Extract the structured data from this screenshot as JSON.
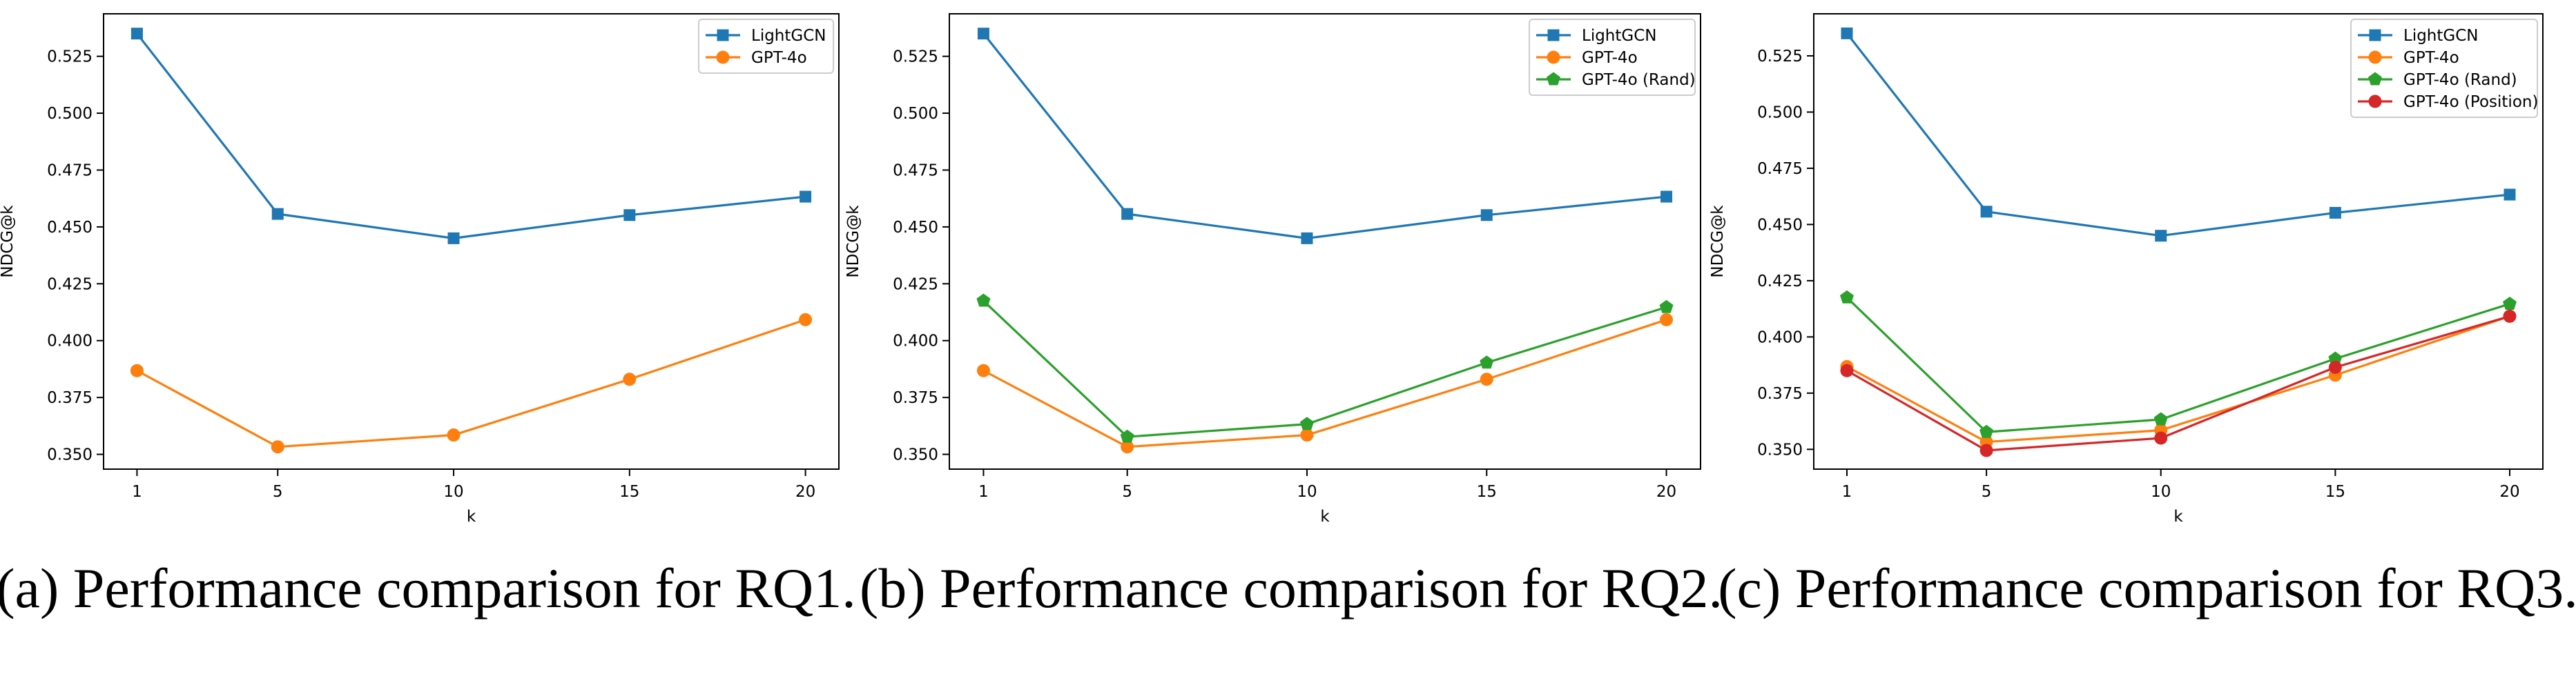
{
  "figure": {
    "captions": [
      "(a) Performance comparison for RQ1.",
      "(b) Performance comparison for RQ2.",
      "(c) Performance comparison for RQ3."
    ]
  },
  "chart_data": [
    {
      "type": "line",
      "title": "",
      "xlabel": "k",
      "ylabel": "NDCG@k",
      "x": [
        1,
        5,
        10,
        15,
        20
      ],
      "xlim": [
        0.05,
        20.95
      ],
      "ylim": [
        0.3435,
        0.5437
      ],
      "yticks": [
        "0.350",
        "0.375",
        "0.400",
        "0.425",
        "0.450",
        "0.475",
        "0.500",
        "0.525"
      ],
      "grid": false,
      "legend": "top-right",
      "series": [
        {
          "name": "LightGCN",
          "color": "#1f77b4",
          "marker": "square",
          "values": [
            0.535,
            0.4557,
            0.445,
            0.4552,
            0.4633
          ]
        },
        {
          "name": "GPT-4o",
          "color": "#ff7f0e",
          "marker": "circle",
          "values": [
            0.3868,
            0.3533,
            0.3585,
            0.383,
            0.4092
          ]
        }
      ]
    },
    {
      "type": "line",
      "title": "",
      "xlabel": "k",
      "ylabel": "NDCG@k",
      "x": [
        1,
        5,
        10,
        15,
        20
      ],
      "xlim": [
        0.05,
        20.95
      ],
      "ylim": [
        0.3435,
        0.5437
      ],
      "yticks": [
        "0.350",
        "0.375",
        "0.400",
        "0.425",
        "0.450",
        "0.475",
        "0.500",
        "0.525"
      ],
      "grid": false,
      "legend": "top-right",
      "series": [
        {
          "name": "LightGCN",
          "color": "#1f77b4",
          "marker": "square",
          "values": [
            0.535,
            0.4557,
            0.445,
            0.4552,
            0.4633
          ]
        },
        {
          "name": "GPT-4o",
          "color": "#ff7f0e",
          "marker": "circle",
          "values": [
            0.3868,
            0.3533,
            0.3585,
            0.383,
            0.4092
          ]
        },
        {
          "name": "GPT-4o (Rand)",
          "color": "#2ca02c",
          "marker": "pentagon",
          "values": [
            0.4175,
            0.3577,
            0.3633,
            0.3903,
            0.4147
          ]
        }
      ]
    },
    {
      "type": "line",
      "title": "",
      "xlabel": "k",
      "ylabel": "NDCG@k",
      "x": [
        1,
        5,
        10,
        15,
        20
      ],
      "xlim": [
        0.05,
        20.95
      ],
      "ylim": [
        0.3412,
        0.5437
      ],
      "yticks": [
        "0.350",
        "0.375",
        "0.400",
        "0.425",
        "0.450",
        "0.475",
        "0.500",
        "0.525"
      ],
      "grid": false,
      "legend": "top-right",
      "series": [
        {
          "name": "LightGCN",
          "color": "#1f77b4",
          "marker": "square",
          "values": [
            0.535,
            0.4557,
            0.445,
            0.4552,
            0.4633
          ]
        },
        {
          "name": "GPT-4o",
          "color": "#ff7f0e",
          "marker": "circle",
          "values": [
            0.3868,
            0.3533,
            0.3585,
            0.383,
            0.4092
          ]
        },
        {
          "name": "GPT-4o (Rand)",
          "color": "#2ca02c",
          "marker": "pentagon",
          "values": [
            0.4175,
            0.3577,
            0.3633,
            0.3903,
            0.4147
          ]
        },
        {
          "name": "GPT-4o (Position)",
          "color": "#d62728",
          "marker": "circle",
          "values": [
            0.385,
            0.3495,
            0.355,
            0.3865,
            0.4092
          ]
        }
      ]
    }
  ]
}
